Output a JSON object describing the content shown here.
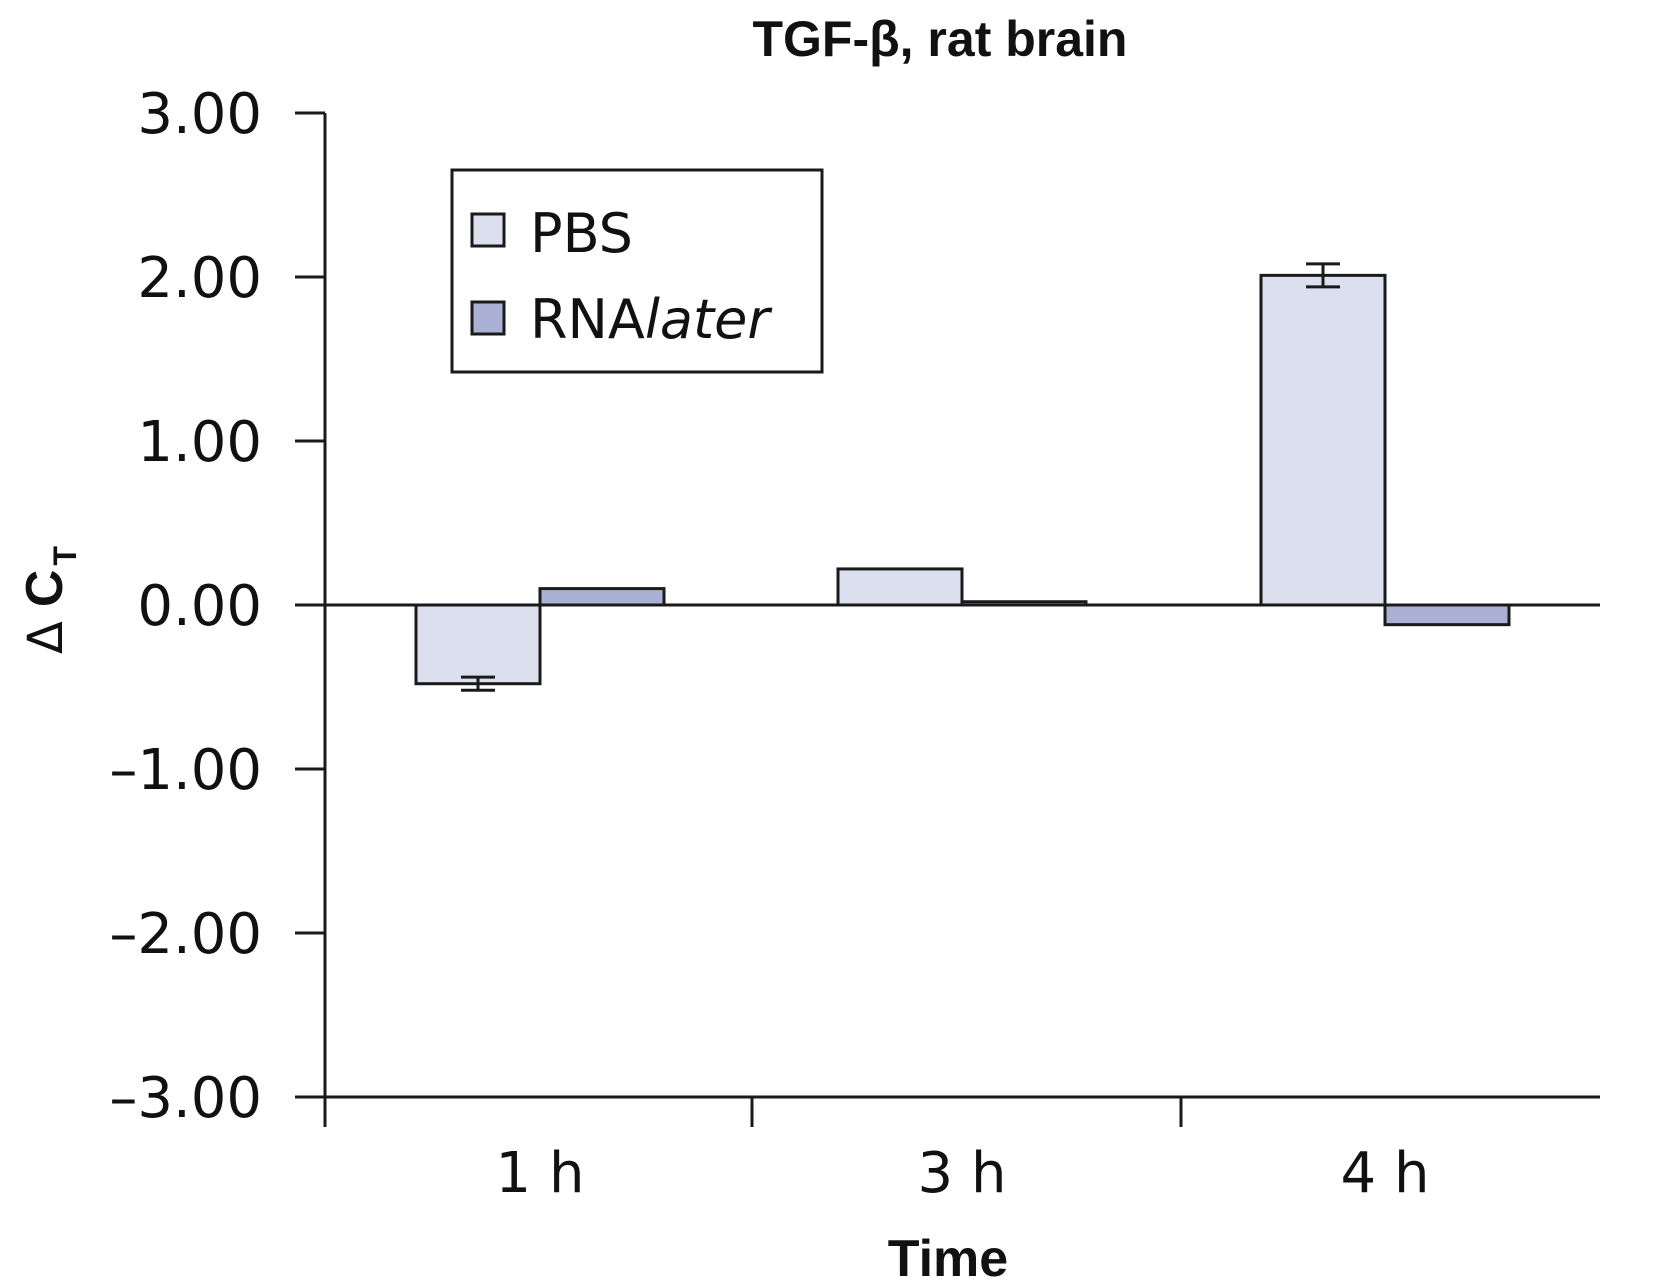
{
  "chart_data": {
    "type": "bar",
    "title": "TGF-β, rat brain",
    "xlabel": "Time",
    "ylabel": {
      "symbol": "Δ",
      "main": "C",
      "sub": "T"
    },
    "categories": [
      "1 h",
      "3 h",
      "4 h"
    ],
    "series": [
      {
        "name": "PBS",
        "values": [
          -0.48,
          0.22,
          2.01
        ],
        "errors": [
          0.04,
          0.0,
          0.07
        ],
        "color": "#dcdfee"
      },
      {
        "name": "RNAlater",
        "values": [
          0.1,
          0.02,
          -0.12
        ],
        "errors": [
          0.0,
          0.0,
          0.0
        ],
        "color": "#aab1d5"
      }
    ],
    "legend": {
      "position": "top-left",
      "entries": [
        {
          "prefix": "PBS",
          "italic": ""
        },
        {
          "prefix": "RNA",
          "italic": "later"
        }
      ]
    },
    "ylim": [
      -3,
      3
    ],
    "yticks": [
      3,
      2,
      1,
      0,
      -1,
      -2,
      -3
    ],
    "ytick_labels": [
      "3.00",
      "2.00",
      "1.00",
      "0.00",
      "–1.00",
      "–2.00",
      "–3.00"
    ],
    "grid": false
  }
}
